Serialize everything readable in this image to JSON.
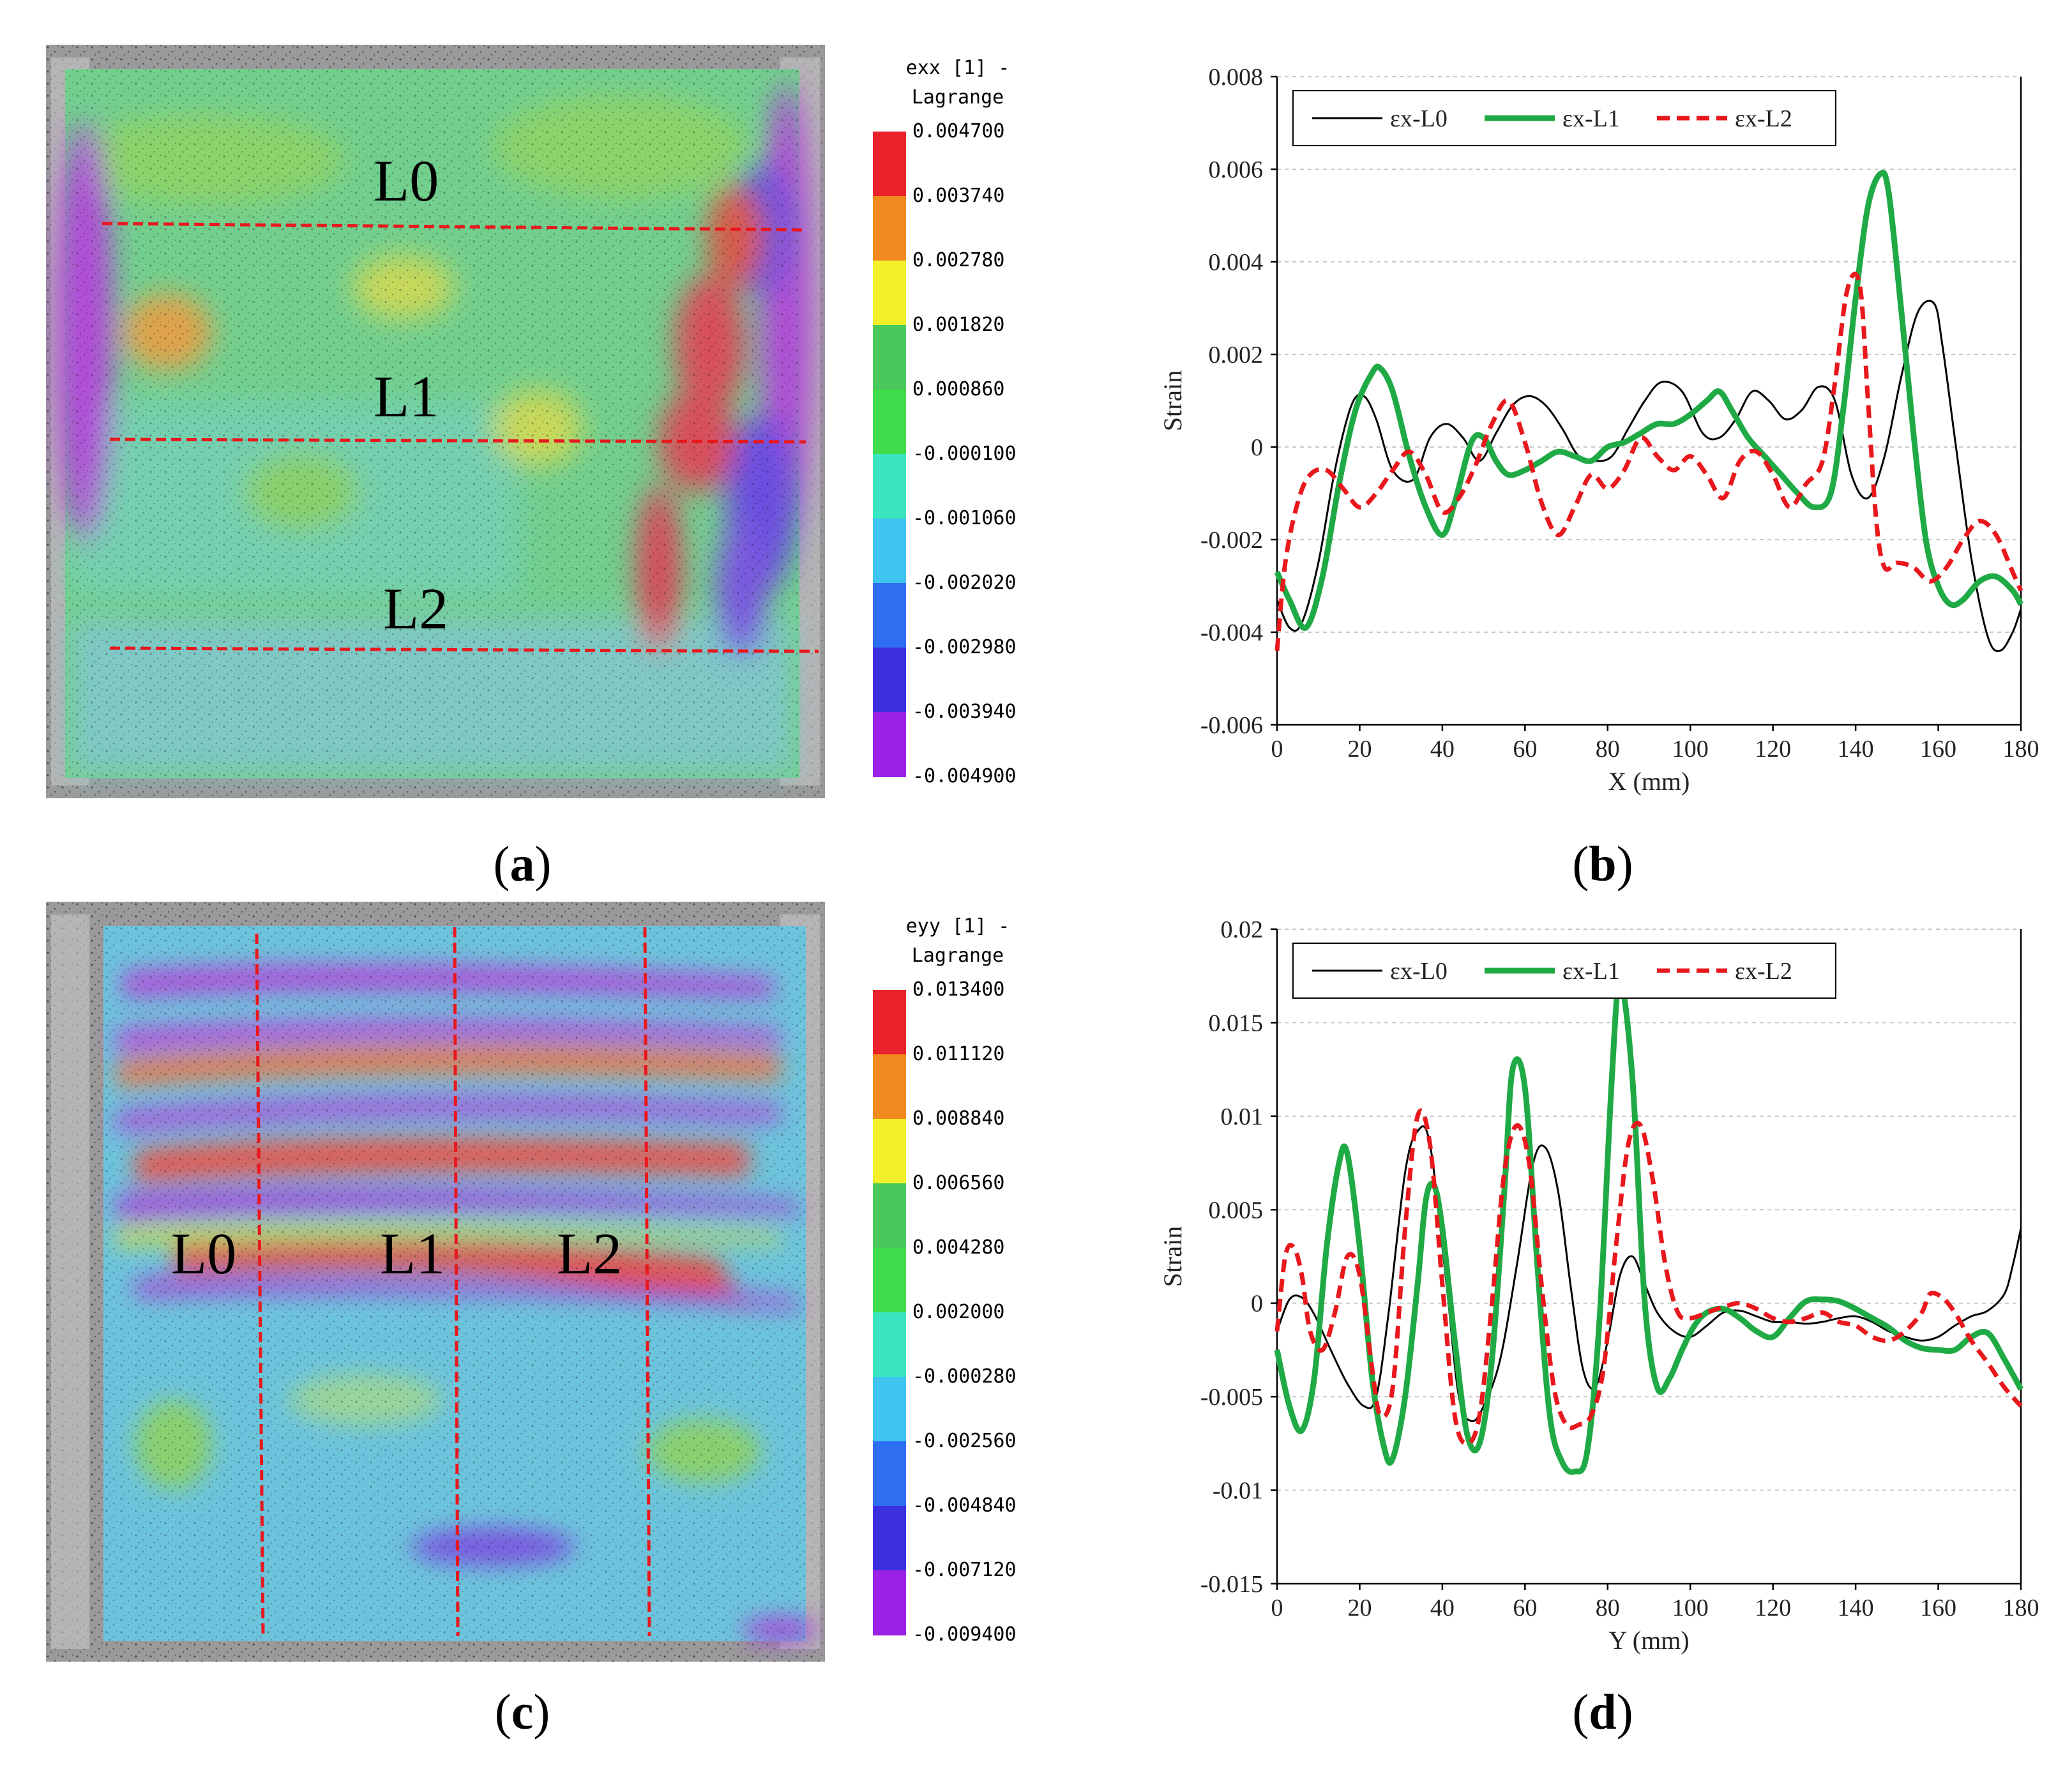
{
  "figure": {
    "panel_labels": [
      "a",
      "b",
      "c",
      "d"
    ]
  },
  "panel_a": {
    "colorbar_title": "exx [1] -\nLagrange",
    "colorbar_ticks": [
      "0.004700",
      "0.003740",
      "0.002780",
      "0.001820",
      "0.000860",
      "-0.000100",
      "-0.001060",
      "-0.002020",
      "-0.002980",
      "-0.003940",
      "-0.004900"
    ],
    "line_labels": [
      "L0",
      "L1",
      "L2"
    ]
  },
  "panel_c": {
    "colorbar_title": "eyy [1] -\nLagrange",
    "colorbar_ticks": [
      "0.013400",
      "0.011120",
      "0.008840",
      "0.006560",
      "0.004280",
      "0.002000",
      "-0.000280",
      "-0.002560",
      "-0.004840",
      "-0.007120",
      "-0.009400"
    ],
    "line_labels": [
      "L0",
      "L1",
      "L2"
    ]
  },
  "colorbar_colors": [
    "#e8212b",
    "#f08a1e",
    "#f3ef2a",
    "#49c95c",
    "#3fdd4b",
    "#39e6c0",
    "#3fc4f0",
    "#2e6ef0",
    "#3c2fe0",
    "#9a22e6",
    "#e020f0"
  ],
  "chart_data": [
    {
      "id": "b",
      "type": "line",
      "xlabel": "X (mm)",
      "ylabel": "Strain",
      "xlim": [
        0,
        180
      ],
      "ylim": [
        -0.006,
        0.008
      ],
      "xticks": [
        0,
        20,
        40,
        60,
        80,
        100,
        120,
        140,
        160,
        180
      ],
      "yticks": [
        -0.006,
        -0.004,
        -0.002,
        0,
        0.002,
        0.004,
        0.006,
        0.008
      ],
      "ytick_labels": [
        "-0.006",
        "-0.004",
        "-0.002",
        "0",
        "0.002",
        "0.004",
        "0.006",
        "0.008"
      ],
      "grid": "horizontal",
      "legend": "top",
      "series": [
        {
          "name": "εx-L0",
          "color": "#000000",
          "style": "solid",
          "x": [
            0,
            3,
            6,
            10,
            14,
            18,
            21,
            24,
            28,
            33,
            37,
            41,
            45,
            49,
            53,
            57,
            61,
            65,
            69,
            73,
            77,
            81,
            85,
            89,
            93,
            98,
            103,
            107,
            111,
            115,
            119,
            123,
            127,
            131,
            135,
            139,
            143,
            147,
            151,
            155,
            159,
            161,
            164,
            168,
            172,
            175,
            178,
            180
          ],
          "y": [
            -0.0033,
            -0.0039,
            -0.0038,
            -0.0025,
            -0.0005,
            0.0009,
            0.0011,
            0.0006,
            -0.0005,
            -0.0007,
            0.0002,
            0.0005,
            0.0002,
            -0.0003,
            0.0003,
            0.0009,
            0.0011,
            0.0009,
            0.0004,
            -0.0002,
            -0.0003,
            -0.0002,
            0.0004,
            0.001,
            0.0014,
            0.0012,
            0.0003,
            0.0002,
            0.0006,
            0.0012,
            0.001,
            0.0006,
            0.0008,
            0.0013,
            0.001,
            -0.0006,
            -0.0011,
            -0.0002,
            0.0015,
            0.0029,
            0.0031,
            0.0022,
            0.0002,
            -0.0024,
            -0.0041,
            -0.0044,
            -0.004,
            -0.0035
          ]
        },
        {
          "name": "εx-L1",
          "color": "#1faa45",
          "style": "solid",
          "x": [
            0,
            3,
            7,
            11,
            15,
            19,
            23,
            25,
            28,
            32,
            36,
            40,
            43,
            47,
            50,
            53,
            56,
            60,
            64,
            68,
            72,
            76,
            80,
            84,
            88,
            92,
            96,
            100,
            104,
            107,
            110,
            114,
            118,
            122,
            126,
            130,
            134,
            137,
            140,
            143,
            146,
            148,
            151,
            154,
            157,
            160,
            163,
            166,
            170,
            174,
            178,
            180
          ],
          "y": [
            -0.0027,
            -0.0033,
            -0.0039,
            -0.0028,
            -0.0008,
            0.0008,
            0.0016,
            0.0017,
            0.0012,
            -0.0002,
            -0.0013,
            -0.0019,
            -0.0012,
            0.0001,
            0.0002,
            -0.0003,
            -0.0006,
            -0.0005,
            -0.0003,
            -0.0001,
            -0.0002,
            -0.0003,
            0.0,
            0.0001,
            0.0003,
            0.0005,
            0.0005,
            0.0007,
            0.001,
            0.0012,
            0.0008,
            0.0002,
            -0.0002,
            -0.0006,
            -0.001,
            -0.0013,
            -0.001,
            0.0008,
            0.0032,
            0.0052,
            0.0059,
            0.0055,
            0.003,
            0.0003,
            -0.002,
            -0.003,
            -0.0034,
            -0.0033,
            -0.0029,
            -0.0028,
            -0.0031,
            -0.0034
          ]
        },
        {
          "name": "εx-L2",
          "color": "#e8181d",
          "style": "dashed",
          "x": [
            0,
            2,
            5,
            8,
            12,
            16,
            20,
            24,
            28,
            32,
            36,
            40,
            44,
            48,
            52,
            56,
            60,
            64,
            68,
            72,
            76,
            80,
            84,
            88,
            92,
            96,
            100,
            104,
            108,
            112,
            116,
            120,
            124,
            128,
            132,
            135,
            138,
            141,
            143,
            145,
            147,
            150,
            154,
            158,
            162,
            166,
            170,
            174,
            178,
            180
          ],
          "y": [
            -0.0044,
            -0.0025,
            -0.0012,
            -0.0006,
            -0.0005,
            -0.0009,
            -0.0013,
            -0.001,
            -0.0005,
            -0.0001,
            -0.0006,
            -0.0014,
            -0.0011,
            -0.0004,
            0.0005,
            0.001,
            0.0001,
            -0.0012,
            -0.0019,
            -0.0013,
            -0.0006,
            -0.0009,
            -0.0005,
            0.0002,
            -0.0002,
            -0.0005,
            -0.0002,
            -0.0006,
            -0.0011,
            -0.0003,
            -0.0001,
            -0.0006,
            -0.0013,
            -0.0008,
            -0.0003,
            0.0014,
            0.0034,
            0.0035,
            0.001,
            -0.0016,
            -0.0026,
            -0.0025,
            -0.0026,
            -0.0029,
            -0.0026,
            -0.002,
            -0.0016,
            -0.0019,
            -0.0027,
            -0.0031
          ]
        }
      ]
    },
    {
      "id": "d",
      "type": "line",
      "xlabel": "Y (mm)",
      "ylabel": "Strain",
      "xlim": [
        0,
        180
      ],
      "ylim": [
        -0.015,
        0.02
      ],
      "xticks": [
        0,
        20,
        40,
        60,
        80,
        100,
        120,
        140,
        160,
        180
      ],
      "yticks": [
        -0.015,
        -0.01,
        -0.005,
        0,
        0.005,
        0.01,
        0.015,
        0.02
      ],
      "ytick_labels": [
        "-0.015",
        "-0.01",
        "-0.005",
        "0",
        "0.005",
        "0.01",
        "0.015",
        "0.02"
      ],
      "grid": "horizontal",
      "legend": "top",
      "series": [
        {
          "name": "εx-L0",
          "color": "#000000",
          "style": "solid",
          "x": [
            0,
            3,
            6,
            9,
            13,
            17,
            21,
            24,
            27,
            31,
            34,
            37,
            41,
            44,
            47,
            50,
            54,
            58,
            62,
            65,
            68,
            71,
            74,
            77,
            80,
            83,
            86,
            89,
            92,
            96,
            100,
            104,
            108,
            112,
            116,
            120,
            124,
            128,
            132,
            136,
            140,
            144,
            148,
            152,
            156,
            160,
            164,
            168,
            172,
            176,
            178,
            180
          ],
          "y": [
            -0.0015,
            0.0002,
            0.0003,
            -0.0006,
            -0.0025,
            -0.0043,
            -0.0055,
            -0.005,
            -0.0005,
            0.007,
            0.0092,
            0.0085,
            0.001,
            -0.005,
            -0.0063,
            -0.0055,
            -0.003,
            0.002,
            0.0075,
            0.0083,
            0.006,
            0.001,
            -0.0035,
            -0.0045,
            -0.002,
            0.0015,
            0.0025,
            0.001,
            -0.0005,
            -0.0015,
            -0.0018,
            -0.0012,
            -0.0005,
            -0.0004,
            -0.0007,
            -0.001,
            -0.001,
            -0.0011,
            -0.001,
            -0.0008,
            -0.0007,
            -0.001,
            -0.0015,
            -0.0018,
            -0.002,
            -0.0018,
            -0.0012,
            -0.0007,
            -0.0004,
            0.0005,
            0.002,
            0.004
          ]
        },
        {
          "name": "εx-L1",
          "color": "#1faa45",
          "style": "solid",
          "x": [
            0,
            3,
            6,
            9,
            12,
            15,
            17,
            20,
            23,
            26,
            28,
            31,
            34,
            36,
            38,
            40,
            43,
            46,
            49,
            52,
            55,
            57,
            60,
            63,
            66,
            69,
            72,
            75,
            78,
            81,
            83,
            86,
            89,
            92,
            95,
            98,
            101,
            104,
            108,
            112,
            116,
            120,
            124,
            128,
            132,
            136,
            140,
            144,
            148,
            152,
            156,
            160,
            164,
            168,
            172,
            176,
            180
          ],
          "y": [
            -0.0025,
            -0.0055,
            -0.0068,
            -0.004,
            0.003,
            0.0075,
            0.008,
            0.003,
            -0.004,
            -0.0078,
            -0.0083,
            -0.005,
            0.001,
            0.0055,
            0.0063,
            0.004,
            -0.002,
            -0.007,
            -0.0075,
            -0.003,
            0.006,
            0.0125,
            0.0115,
            0.002,
            -0.006,
            -0.0085,
            -0.009,
            -0.008,
            -0.001,
            0.012,
            0.0172,
            0.012,
            0.0,
            -0.0045,
            -0.004,
            -0.0025,
            -0.0012,
            -0.0005,
            -0.0003,
            -0.0008,
            -0.0015,
            -0.0018,
            -0.0008,
            0.0001,
            0.0002,
            0.0001,
            -0.0003,
            -0.0008,
            -0.0013,
            -0.002,
            -0.0024,
            -0.0025,
            -0.0025,
            -0.0018,
            -0.0016,
            -0.003,
            -0.0046
          ]
        },
        {
          "name": "εx-L2",
          "color": "#e8181d",
          "style": "dashed",
          "x": [
            0,
            2,
            4,
            6,
            8,
            11,
            14,
            17,
            20,
            23,
            25,
            28,
            31,
            34,
            37,
            40,
            43,
            46,
            49,
            52,
            55,
            58,
            61,
            64,
            67,
            70,
            73,
            76,
            79,
            82,
            85,
            88,
            91,
            94,
            97,
            100,
            104,
            108,
            112,
            116,
            120,
            124,
            128,
            132,
            136,
            140,
            144,
            148,
            152,
            156,
            158,
            161,
            164,
            168,
            172,
            176,
            180
          ],
          "y": [
            -0.0015,
            0.0025,
            0.003,
            0.0015,
            -0.0015,
            -0.0025,
            -0.0005,
            0.0025,
            0.0015,
            -0.0035,
            -0.006,
            -0.0045,
            0.004,
            0.01,
            0.0085,
            0.001,
            -0.006,
            -0.0075,
            -0.006,
            0.0,
            0.007,
            0.0095,
            0.0075,
            0.001,
            -0.0045,
            -0.0065,
            -0.0065,
            -0.006,
            -0.0035,
            0.003,
            0.0085,
            0.0095,
            0.0065,
            0.002,
            -0.0005,
            -0.0008,
            -0.0005,
            -0.0002,
            0.0,
            -0.0003,
            -0.0008,
            -0.001,
            -0.0008,
            -0.0005,
            -0.001,
            -0.0012,
            -0.0018,
            -0.002,
            -0.0015,
            -0.0005,
            0.0005,
            0.0003,
            -0.0005,
            -0.002,
            -0.0032,
            -0.0045,
            -0.0055
          ]
        }
      ]
    }
  ]
}
